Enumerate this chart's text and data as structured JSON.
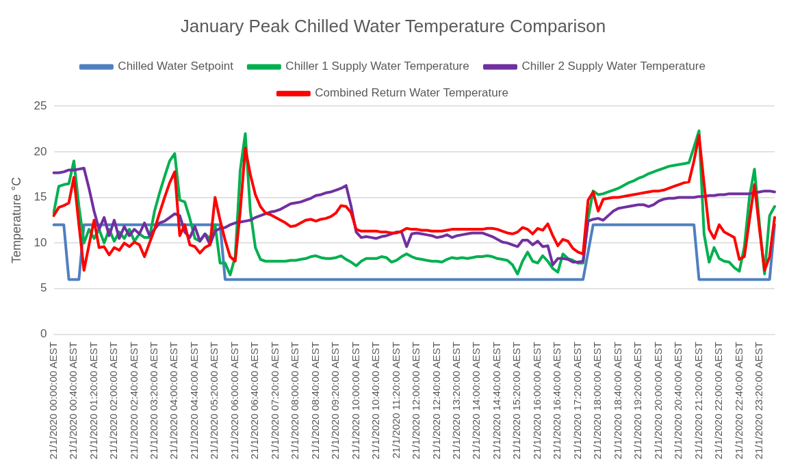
{
  "chart_data": {
    "type": "line",
    "title": "January Peak Chilled Water Temperature Comparison",
    "ylabel": "Temperature °C",
    "categories": [
      "21/1/2020 00:00:00 AEST",
      null,
      null,
      null,
      "21/1/2020 00:40:00 AEST",
      null,
      null,
      null,
      "21/1/2020 01:20:00 AEST",
      null,
      null,
      null,
      "21/1/2020 02:00:00 AEST",
      null,
      null,
      null,
      "21/1/2020 02:40:00 AEST",
      null,
      null,
      null,
      "21/1/2020 03:20:00 AEST",
      null,
      null,
      null,
      "21/1/2020 04:00:00 AEST",
      null,
      null,
      null,
      "21/1/2020 04:40:00 AEST",
      null,
      null,
      null,
      "21/1/2020 05:20:00 AEST",
      null,
      null,
      null,
      "21/1/2020 06:00:00 AEST",
      null,
      null,
      null,
      "21/1/2020 06:40:00 AEST",
      null,
      null,
      null,
      "21/1/2020 07:20:00 AEST",
      null,
      null,
      null,
      "21/1/2020 08:00:00 AEST",
      null,
      null,
      null,
      "21/1/2020 08:40:00 AEST",
      null,
      null,
      null,
      "21/1/2020 09:20:00 AEST",
      null,
      null,
      null,
      "21/1/2020 10:00:00 AEST",
      null,
      null,
      null,
      "21/1/2020 10:40:00 AEST",
      null,
      null,
      null,
      "21/1/2020 11:20:00 AEST",
      null,
      null,
      null,
      "21/1/2020 12:00:00 AEST",
      null,
      null,
      null,
      "21/1/2020 12:40:00 AEST",
      null,
      null,
      null,
      "21/1/2020 13:20:00 AEST",
      null,
      null,
      null,
      "21/1/2020 14:00:00 AEST",
      null,
      null,
      null,
      "21/1/2020 14:40:00 AEST",
      null,
      null,
      null,
      "21/1/2020 15:20:00 AEST",
      null,
      null,
      null,
      "21/1/2020 16:00:00 AEST",
      null,
      null,
      null,
      "21/1/2020 16:40:00 AEST",
      null,
      null,
      null,
      "21/1/2020 17:20:00 AEST",
      null,
      null,
      null,
      "21/1/2020 18:00:00 AEST",
      null,
      null,
      null,
      "21/1/2020 18:40:00 AEST",
      null,
      null,
      null,
      "21/1/2020 19:20:00 AEST",
      null,
      null,
      null,
      "21/1/2020 20:00:00 AEST",
      null,
      null,
      null,
      "21/1/2020 20:40:00 AEST",
      null,
      null,
      null,
      "21/1/2020 21:20:00 AEST",
      null,
      null,
      null,
      "21/1/2020 22:00:00 AEST",
      null,
      null,
      null,
      "21/1/2020 22:40:00 AEST",
      null,
      null,
      null,
      "21/1/2020 23:20:00 AEST",
      null,
      null,
      null
    ],
    "series": [
      {
        "name": "Chilled Water Setpoint",
        "color": "#4f7fc0",
        "values": [
          12,
          12,
          12,
          6,
          6,
          6,
          12,
          12,
          12,
          12,
          12,
          12,
          12,
          12,
          12,
          12,
          12,
          12,
          12,
          12,
          12,
          12,
          12,
          12,
          12,
          12,
          12,
          12,
          12,
          12,
          12,
          12,
          12,
          12,
          6,
          6,
          6,
          6,
          6,
          6,
          6,
          6,
          6,
          6,
          6,
          6,
          6,
          6,
          6,
          6,
          6,
          6,
          6,
          6,
          6,
          6,
          6,
          6,
          6,
          6,
          6,
          6,
          6,
          6,
          6,
          6,
          6,
          6,
          6,
          6,
          6,
          6,
          6,
          6,
          6,
          6,
          6,
          6,
          6,
          6,
          6,
          6,
          6,
          6,
          6,
          6,
          6,
          6,
          6,
          6,
          6,
          6,
          6,
          6,
          6,
          6,
          6,
          6,
          6,
          6,
          6,
          6,
          6,
          6,
          6,
          6,
          9,
          12,
          12,
          12,
          12,
          12,
          12,
          12,
          12,
          12,
          12,
          12,
          12,
          12,
          12,
          12,
          12,
          12,
          12,
          12,
          12,
          12,
          6,
          6,
          6,
          6,
          6,
          6,
          6,
          6,
          6,
          6,
          6,
          6,
          6,
          6,
          6,
          12
        ]
      },
      {
        "name": "Chiller 1 Supply Water Temperature",
        "color": "#00b050",
        "values": [
          13.3,
          16.2,
          16.4,
          16.5,
          19.0,
          14.0,
          10.0,
          11.5,
          10.5,
          11.5,
          10.0,
          11.5,
          10.2,
          11.2,
          10.5,
          11.5,
          10.2,
          11.0,
          10.6,
          10.6,
          13.5,
          15.5,
          17.3,
          19.0,
          19.8,
          14.7,
          14.5,
          12.7,
          10.5,
          10.2,
          11.0,
          10.5,
          12.0,
          7.8,
          7.8,
          6.5,
          8.5,
          18.0,
          22.0,
          13.5,
          9.5,
          8.2,
          8.0,
          8.0,
          8.0,
          8.0,
          8.0,
          8.1,
          8.1,
          8.2,
          8.3,
          8.5,
          8.6,
          8.4,
          8.3,
          8.3,
          8.4,
          8.6,
          8.2,
          7.9,
          7.5,
          8.0,
          8.3,
          8.3,
          8.3,
          8.5,
          8.4,
          7.9,
          8.1,
          8.5,
          8.8,
          8.5,
          8.3,
          8.2,
          8.1,
          8.0,
          8.0,
          7.9,
          8.2,
          8.4,
          8.3,
          8.4,
          8.3,
          8.4,
          8.5,
          8.5,
          8.6,
          8.5,
          8.3,
          8.2,
          8.1,
          7.6,
          6.6,
          8.0,
          9.0,
          8.0,
          7.8,
          8.6,
          8.0,
          7.2,
          6.8,
          8.8,
          8.3,
          8.1,
          7.8,
          7.8,
          12.7,
          15.7,
          15.3,
          15.4,
          15.6,
          15.8,
          16.0,
          16.3,
          16.6,
          16.8,
          17.1,
          17.3,
          17.6,
          17.8,
          18.0,
          18.2,
          18.4,
          18.5,
          18.6,
          18.7,
          18.8,
          20.5,
          22.3,
          11.0,
          7.9,
          9.5,
          8.3,
          8.0,
          7.9,
          7.3,
          6.9,
          9.6,
          15.0,
          18.1,
          12.0,
          6.6,
          13.0,
          14.0
        ]
      },
      {
        "name": "Chiller 2 Supply Water Temperature",
        "color": "#7030a0",
        "values": [
          17.7,
          17.7,
          17.8,
          18.0,
          18.0,
          18.1,
          18.2,
          16.0,
          13.5,
          11.5,
          12.8,
          10.8,
          12.5,
          10.5,
          11.8,
          10.8,
          11.5,
          11.0,
          12.2,
          10.8,
          11.5,
          12.2,
          12.4,
          12.8,
          13.2,
          13.0,
          11.2,
          10.6,
          11.8,
          10.2,
          11.0,
          9.8,
          11.3,
          11.6,
          11.7,
          12.0,
          12.2,
          12.3,
          12.4,
          12.5,
          12.8,
          13.0,
          13.2,
          13.4,
          13.5,
          13.7,
          14.0,
          14.3,
          14.4,
          14.5,
          14.7,
          14.9,
          15.2,
          15.3,
          15.5,
          15.6,
          15.8,
          16.0,
          16.3,
          14.0,
          11.2,
          10.6,
          10.7,
          10.6,
          10.5,
          10.7,
          10.8,
          11.0,
          11.2,
          11.2,
          9.6,
          11.0,
          11.1,
          11.0,
          10.9,
          10.8,
          10.6,
          10.7,
          10.9,
          10.6,
          10.8,
          10.9,
          11.0,
          11.1,
          11.1,
          11.1,
          10.9,
          10.7,
          10.4,
          10.1,
          10.0,
          9.8,
          9.6,
          10.3,
          10.3,
          9.8,
          10.2,
          9.6,
          9.7,
          7.6,
          8.3,
          8.3,
          8.2,
          7.9,
          7.9,
          8.0,
          12.4,
          12.6,
          12.7,
          12.5,
          13.0,
          13.5,
          13.8,
          13.9,
          14.0,
          14.1,
          14.2,
          14.2,
          14.0,
          14.2,
          14.6,
          14.8,
          14.9,
          14.9,
          15.0,
          15.0,
          15.0,
          15.0,
          15.1,
          15.1,
          15.2,
          15.2,
          15.3,
          15.3,
          15.4,
          15.4,
          15.4,
          15.4,
          15.4,
          15.5,
          15.6,
          15.7,
          15.7,
          15.6
        ]
      },
      {
        "name": "Combined Return Water Temperature",
        "color": "#ff0000",
        "values": [
          13.0,
          13.9,
          14.1,
          14.4,
          17.2,
          12.0,
          7.0,
          9.8,
          12.5,
          9.5,
          9.6,
          8.7,
          9.5,
          9.2,
          10.0,
          9.6,
          10.1,
          9.8,
          8.5,
          10.0,
          11.5,
          13.3,
          15.0,
          16.6,
          17.8,
          10.8,
          12.0,
          9.8,
          9.6,
          8.9,
          9.5,
          9.8,
          15.0,
          12.5,
          10.3,
          8.5,
          8.0,
          13.5,
          20.4,
          17.5,
          15.3,
          14.0,
          13.3,
          13.1,
          12.8,
          12.5,
          12.2,
          11.8,
          11.9,
          12.2,
          12.5,
          12.6,
          12.4,
          12.6,
          12.7,
          12.9,
          13.3,
          14.1,
          14.0,
          13.3,
          11.5,
          11.3,
          11.3,
          11.3,
          11.3,
          11.2,
          11.2,
          11.1,
          11.1,
          11.3,
          11.6,
          11.5,
          11.5,
          11.4,
          11.4,
          11.3,
          11.3,
          11.3,
          11.4,
          11.5,
          11.5,
          11.5,
          11.5,
          11.5,
          11.5,
          11.5,
          11.6,
          11.6,
          11.5,
          11.3,
          11.1,
          11.0,
          11.2,
          11.7,
          11.5,
          11.0,
          11.6,
          11.4,
          12.1,
          10.8,
          9.7,
          10.4,
          10.2,
          9.4,
          9.0,
          8.8,
          14.7,
          15.6,
          13.5,
          14.8,
          14.9,
          15.0,
          15.0,
          15.1,
          15.2,
          15.3,
          15.4,
          15.5,
          15.6,
          15.7,
          15.7,
          15.8,
          16.0,
          16.2,
          16.4,
          16.6,
          16.7,
          19.0,
          21.8,
          16.5,
          11.5,
          10.5,
          12.0,
          11.2,
          10.9,
          10.6,
          8.2,
          8.5,
          12.5,
          16.4,
          11.5,
          7.0,
          8.5,
          12.8
        ]
      }
    ],
    "ylim": [
      0,
      25
    ],
    "yticks": [
      0,
      5,
      10,
      15,
      20,
      25
    ],
    "grid": "y",
    "legend": "top",
    "marker": "none",
    "line_style": "solid"
  }
}
